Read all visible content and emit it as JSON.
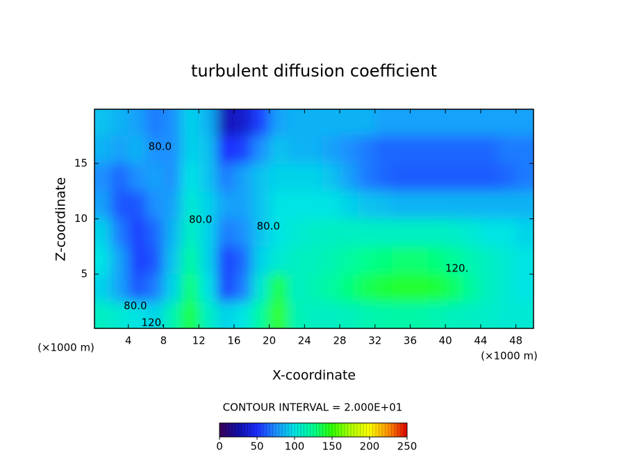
{
  "chart_data": {
    "type": "contour",
    "title": "turbulent diffusion coefficient",
    "x_label": "X-coordinate",
    "y_label": "Z-coordinate",
    "x_unit_left": "(×1000 m)",
    "x_unit_right": "(×1000 m)",
    "contour_interval": "CONTOUR INTERVAL = 2.000E+01",
    "xlim": [
      0,
      50
    ],
    "ylim": [
      0.1,
      19.9
    ],
    "xticks": [
      4,
      8,
      12,
      16,
      20,
      24,
      28,
      32,
      36,
      40,
      44,
      48
    ],
    "yticks": [
      5,
      10,
      15
    ],
    "x": [
      1,
      3,
      5,
      7,
      9,
      11,
      13,
      15,
      17,
      19,
      21,
      23,
      25,
      27,
      29,
      31,
      33,
      35,
      37,
      39,
      41,
      43,
      45,
      47,
      49
    ],
    "z": [
      18.75,
      16.25,
      13.75,
      11.25,
      8.75,
      6.25,
      3.75,
      1.25
    ],
    "values": [
      [
        90,
        85,
        80,
        70,
        75,
        95,
        85,
        30,
        35,
        55,
        80,
        85,
        85,
        85,
        85,
        85,
        80,
        80,
        80,
        80,
        80,
        80,
        80,
        80,
        80
      ],
      [
        85,
        80,
        85,
        75,
        75,
        95,
        90,
        50,
        55,
        75,
        90,
        85,
        85,
        80,
        75,
        70,
        65,
        65,
        65,
        65,
        65,
        65,
        65,
        70,
        70
      ],
      [
        75,
        65,
        75,
        80,
        75,
        100,
        90,
        70,
        80,
        90,
        95,
        95,
        95,
        90,
        80,
        70,
        65,
        62,
        62,
        62,
        62,
        62,
        62,
        65,
        70
      ],
      [
        80,
        60,
        60,
        75,
        80,
        105,
        95,
        80,
        80,
        90,
        100,
        100,
        100,
        100,
        95,
        90,
        88,
        85,
        85,
        85,
        85,
        85,
        85,
        85,
        85
      ],
      [
        95,
        70,
        55,
        65,
        85,
        110,
        95,
        70,
        75,
        90,
        100,
        105,
        108,
        110,
        110,
        110,
        110,
        110,
        110,
        110,
        108,
        105,
        100,
        100,
        95
      ],
      [
        100,
        80,
        55,
        60,
        90,
        120,
        95,
        55,
        65,
        95,
        105,
        110,
        112,
        115,
        120,
        125,
        128,
        130,
        130,
        128,
        122,
        115,
        110,
        105,
        100
      ],
      [
        95,
        80,
        60,
        70,
        95,
        130,
        100,
        55,
        70,
        105,
        140,
        110,
        115,
        120,
        128,
        135,
        140,
        142,
        142,
        140,
        132,
        120,
        110,
        105,
        100
      ],
      [
        110,
        105,
        100,
        95,
        115,
        140,
        110,
        95,
        100,
        120,
        150,
        115,
        110,
        110,
        112,
        115,
        118,
        118,
        118,
        115,
        112,
        110,
        108,
        105,
        105
      ]
    ],
    "contour_labels": [
      {
        "text": "80.0",
        "x": 7.6,
        "z": 16.5
      },
      {
        "text": "80.0",
        "x": 12.2,
        "z": 9.9
      },
      {
        "text": "80.0",
        "x": 19.9,
        "z": 9.3
      },
      {
        "text": "80.0",
        "x": 4.8,
        "z": 2.1
      },
      {
        "text": "120.",
        "x": 41.3,
        "z": 5.5
      },
      {
        "text": "120.",
        "x": 6.8,
        "z": 0.6
      }
    ],
    "colormap": [
      {
        "value": 0,
        "color": "#3c0058"
      },
      {
        "value": 25,
        "color": "#1010a8"
      },
      {
        "value": 50,
        "color": "#1c2cff"
      },
      {
        "value": 75,
        "color": "#1c90ff"
      },
      {
        "value": 100,
        "color": "#00e4e4"
      },
      {
        "value": 125,
        "color": "#00ff90"
      },
      {
        "value": 150,
        "color": "#30ff00"
      },
      {
        "value": 175,
        "color": "#b0ff00"
      },
      {
        "value": 200,
        "color": "#ffff00"
      },
      {
        "value": 225,
        "color": "#ff9000"
      },
      {
        "value": 250,
        "color": "#e00000"
      }
    ],
    "colorbar_lim": [
      0,
      250
    ],
    "colorbar_ticks": [
      0,
      50,
      100,
      150,
      200,
      250
    ]
  }
}
